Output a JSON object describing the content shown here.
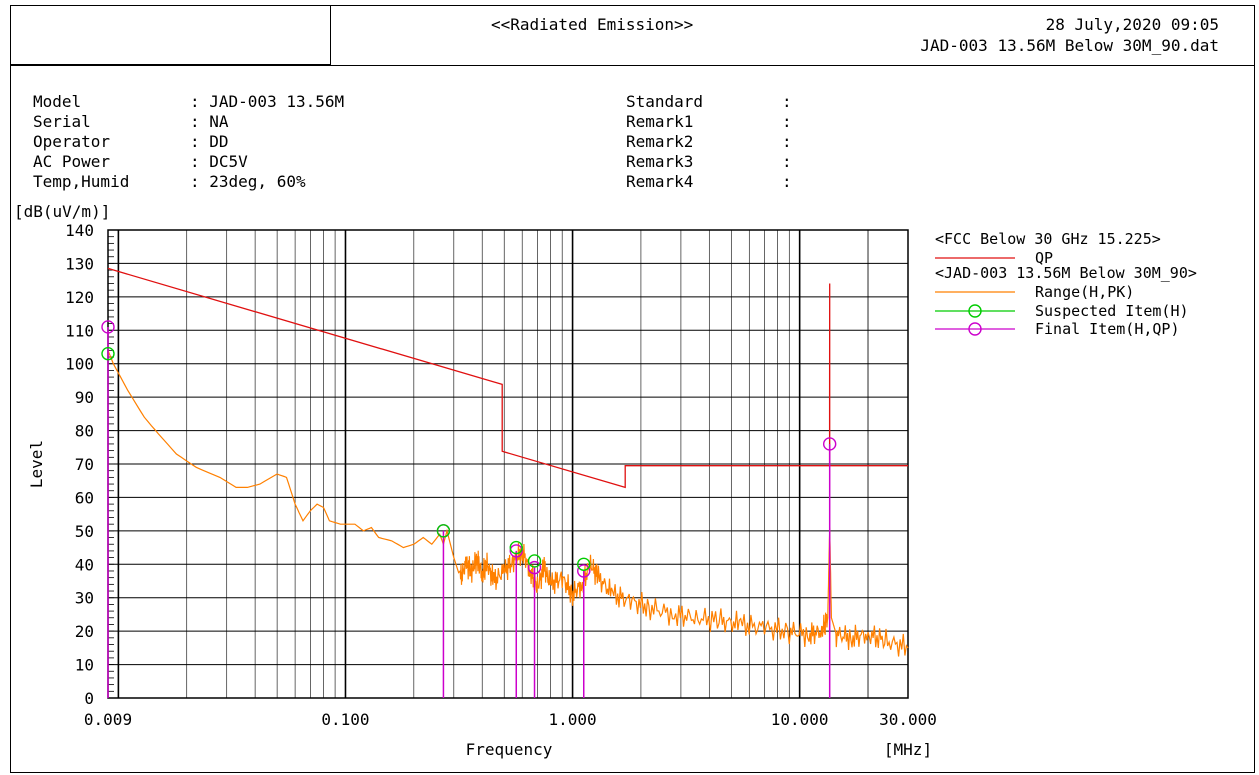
{
  "header": {
    "title": "<<Radiated Emission>>",
    "datetime": "28 July,2020 09:05",
    "filename": "JAD-003 13.56M Below 30M_90.dat"
  },
  "info": [
    {
      "key": "Model",
      "value": ": JAD-003 13.56M"
    },
    {
      "key": "Serial",
      "value": ": NA"
    },
    {
      "key": "Operator",
      "value": ": DD"
    },
    {
      "key": "AC Power",
      "value": ": DC5V"
    },
    {
      "key": "Temp,Humid",
      "value": ": 23deg, 60%"
    }
  ],
  "remarks": [
    {
      "key": "Standard",
      "value": ":"
    },
    {
      "key": "Remark1",
      "value": ":"
    },
    {
      "key": "Remark2",
      "value": ":"
    },
    {
      "key": "Remark3",
      "value": ":"
    },
    {
      "key": "Remark4",
      "value": ":"
    }
  ],
  "chart_data": {
    "type": "line",
    "ylabel": "Level",
    "yunit": "[dB(uV/m)]",
    "xlabel": "Frequency",
    "xunit": "[MHz]",
    "xscale": "log",
    "xlim": [
      0.009,
      30
    ],
    "ylim": [
      0,
      140
    ],
    "yticks": [
      0,
      10,
      20,
      30,
      40,
      50,
      60,
      70,
      80,
      90,
      100,
      110,
      120,
      130,
      140
    ],
    "xtick_labels": [
      {
        "value": 0.009,
        "label": "0.009"
      },
      {
        "value": 0.1,
        "label": "0.100"
      },
      {
        "value": 1,
        "label": "1.000"
      },
      {
        "value": 10,
        "label": "10.000"
      },
      {
        "value": 30,
        "label": "30.000"
      }
    ],
    "grid": true,
    "legend": {
      "position": "right",
      "entries": [
        {
          "name": "<FCC Below 30 GHz 15.225>",
          "type": "header"
        },
        {
          "name": "QP",
          "type": "line",
          "color": "#e01010"
        },
        {
          "name": "<JAD-003 13.56M Below 30M_90>",
          "type": "header"
        },
        {
          "name": "Range(H,PK)",
          "type": "line",
          "color": "#ff8000"
        },
        {
          "name": "Suspected Item(H)",
          "type": "marker",
          "color": "#00cc00"
        },
        {
          "name": "Final Item(H,QP)",
          "type": "marker",
          "color": "#cc00cc"
        }
      ]
    },
    "series": [
      {
        "name": "QP",
        "color": "#e01010",
        "points": [
          [
            0.009,
            128.5
          ],
          [
            0.49,
            93.8
          ],
          [
            0.49,
            73.8
          ],
          [
            1.705,
            63.0
          ],
          [
            1.705,
            69.5
          ],
          [
            13.1,
            69.5
          ],
          [
            13.553,
            69.5
          ],
          [
            13.553,
            90.5
          ],
          [
            13.56,
            124.0
          ],
          [
            13.567,
            90.5
          ],
          [
            13.567,
            69.5
          ],
          [
            13.7,
            69.5
          ],
          [
            30,
            69.5
          ]
        ]
      },
      {
        "name": "Range(H,PK)",
        "color": "#ff8000",
        "points": [
          [
            0.009,
            104
          ],
          [
            0.0095,
            100
          ],
          [
            0.011,
            92
          ],
          [
            0.013,
            84
          ],
          [
            0.015,
            79
          ],
          [
            0.018,
            73
          ],
          [
            0.022,
            69
          ],
          [
            0.028,
            66
          ],
          [
            0.033,
            63
          ],
          [
            0.037,
            63
          ],
          [
            0.042,
            64
          ],
          [
            0.05,
            67
          ],
          [
            0.055,
            66
          ],
          [
            0.06,
            58
          ],
          [
            0.065,
            53
          ],
          [
            0.07,
            56
          ],
          [
            0.075,
            58
          ],
          [
            0.08,
            57
          ],
          [
            0.085,
            53
          ],
          [
            0.095,
            52
          ],
          [
            0.11,
            52
          ],
          [
            0.12,
            50
          ],
          [
            0.13,
            51
          ],
          [
            0.14,
            48
          ],
          [
            0.16,
            47
          ],
          [
            0.18,
            45
          ],
          [
            0.2,
            46
          ],
          [
            0.22,
            48
          ],
          [
            0.24,
            46
          ],
          [
            0.26,
            49
          ],
          [
            0.27,
            46
          ],
          [
            0.28,
            50
          ],
          [
            0.3,
            42
          ],
          [
            0.32,
            36
          ],
          [
            0.34,
            40
          ],
          [
            0.36,
            38
          ],
          [
            0.38,
            42
          ],
          [
            0.4,
            37
          ],
          [
            0.42,
            40
          ],
          [
            0.45,
            35
          ],
          [
            0.5,
            38
          ],
          [
            0.55,
            41
          ],
          [
            0.6,
            44
          ],
          [
            0.65,
            38
          ],
          [
            0.7,
            33
          ],
          [
            0.75,
            39
          ],
          [
            0.8,
            34
          ],
          [
            0.9,
            36
          ],
          [
            1.0,
            31
          ],
          [
            1.1,
            34
          ],
          [
            1.2,
            40
          ],
          [
            1.3,
            36
          ],
          [
            1.5,
            31
          ],
          [
            1.8,
            29
          ],
          [
            2.2,
            27
          ],
          [
            2.8,
            25
          ],
          [
            3.5,
            24
          ],
          [
            4.5,
            23
          ],
          [
            5.5,
            22
          ],
          [
            7.0,
            21
          ],
          [
            9.0,
            20
          ],
          [
            11.0,
            19
          ],
          [
            12.5,
            20
          ],
          [
            13.3,
            24
          ],
          [
            13.56,
            51
          ],
          [
            13.8,
            24
          ],
          [
            14.5,
            19
          ],
          [
            17.0,
            18
          ],
          [
            20.0,
            19
          ],
          [
            24.0,
            17
          ],
          [
            30,
            15
          ]
        ]
      }
    ],
    "suspected_items": [
      {
        "freq": 0.009,
        "level": 103
      },
      {
        "freq": 0.27,
        "level": 50
      },
      {
        "freq": 0.565,
        "level": 45
      },
      {
        "freq": 0.68,
        "level": 41
      },
      {
        "freq": 1.12,
        "level": 40
      }
    ],
    "final_items": [
      {
        "freq": 0.009,
        "level": 111
      },
      {
        "freq": 0.27,
        "level": 50
      },
      {
        "freq": 0.565,
        "level": 44
      },
      {
        "freq": 0.68,
        "level": 39
      },
      {
        "freq": 1.12,
        "level": 38
      },
      {
        "freq": 13.56,
        "level": 76
      }
    ]
  }
}
